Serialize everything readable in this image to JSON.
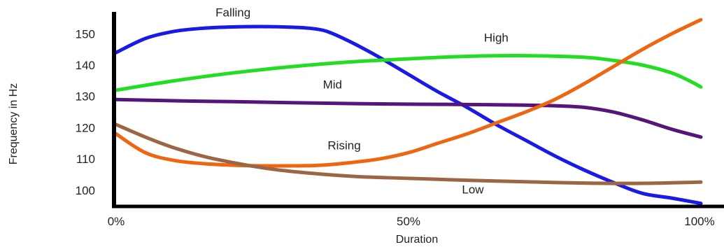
{
  "chart_data": {
    "type": "line",
    "xlabel": "Duration",
    "ylabel": "Frequency in Hz",
    "xlim": [
      0,
      100
    ],
    "ylim": [
      95.5,
      157
    ],
    "x_ticks": [
      {
        "value": 0,
        "label": "0%"
      },
      {
        "value": 50,
        "label": "50%"
      },
      {
        "value": 100,
        "label": "100%"
      }
    ],
    "y_ticks": [
      100,
      110,
      120,
      130,
      140,
      150
    ],
    "grid": false,
    "legend": "none",
    "series": [
      {
        "name": "Falling",
        "color": "#1a1ae6",
        "label_at": [
          20,
          155.5
        ],
        "points": [
          [
            0,
            144
          ],
          [
            5,
            148.5
          ],
          [
            10,
            150.8
          ],
          [
            15,
            151.8
          ],
          [
            20,
            152.2
          ],
          [
            25,
            152.3
          ],
          [
            30,
            152.1
          ],
          [
            33,
            151.8
          ],
          [
            36,
            150.8
          ],
          [
            40,
            147.5
          ],
          [
            45,
            142.5
          ],
          [
            50,
            137
          ],
          [
            55,
            131.5
          ],
          [
            60,
            126.5
          ],
          [
            65,
            121
          ],
          [
            70,
            116
          ],
          [
            75,
            111
          ],
          [
            80,
            106.5
          ],
          [
            85,
            102.5
          ],
          [
            90,
            99
          ],
          [
            95,
            97.5
          ],
          [
            100,
            95.8
          ]
        ]
      },
      {
        "name": "High",
        "color": "#22dd22",
        "label_at": [
          65,
          147.5
        ],
        "points": [
          [
            0,
            132
          ],
          [
            10,
            135
          ],
          [
            20,
            137.5
          ],
          [
            30,
            139.5
          ],
          [
            40,
            141
          ],
          [
            50,
            142
          ],
          [
            60,
            142.8
          ],
          [
            70,
            143
          ],
          [
            80,
            142.5
          ],
          [
            85,
            141.5
          ],
          [
            90,
            140
          ],
          [
            95,
            137.5
          ],
          [
            98,
            135
          ],
          [
            100,
            133
          ]
        ]
      },
      {
        "name": "Mid",
        "color": "#55157a",
        "label_at": [
          37,
          132.5
        ],
        "points": [
          [
            0,
            129
          ],
          [
            10,
            128.6
          ],
          [
            20,
            128.3
          ],
          [
            30,
            128
          ],
          [
            40,
            127.7
          ],
          [
            50,
            127.5
          ],
          [
            60,
            127.4
          ],
          [
            70,
            127.2
          ],
          [
            75,
            127
          ],
          [
            80,
            126.5
          ],
          [
            85,
            125
          ],
          [
            90,
            122.5
          ],
          [
            95,
            119.5
          ],
          [
            100,
            117
          ]
        ]
      },
      {
        "name": "Rising",
        "color": "#ee6611",
        "label_at": [
          39,
          113
        ],
        "points": [
          [
            0,
            118
          ],
          [
            5,
            112
          ],
          [
            10,
            109.5
          ],
          [
            15,
            108.5
          ],
          [
            20,
            108
          ],
          [
            25,
            107.8
          ],
          [
            30,
            107.8
          ],
          [
            35,
            108
          ],
          [
            40,
            108.8
          ],
          [
            45,
            110
          ],
          [
            50,
            112
          ],
          [
            55,
            115
          ],
          [
            60,
            118
          ],
          [
            65,
            121.5
          ],
          [
            70,
            125
          ],
          [
            75,
            129
          ],
          [
            80,
            134
          ],
          [
            85,
            139.5
          ],
          [
            90,
            145
          ],
          [
            95,
            150
          ],
          [
            100,
            154.5
          ]
        ]
      },
      {
        "name": "Low",
        "color": "#9b6644",
        "label_at": [
          61,
          99
        ],
        "points": [
          [
            0,
            121
          ],
          [
            5,
            117
          ],
          [
            10,
            113.5
          ],
          [
            15,
            110.8
          ],
          [
            20,
            108.8
          ],
          [
            25,
            107.2
          ],
          [
            30,
            106
          ],
          [
            40,
            104.5
          ],
          [
            50,
            103.8
          ],
          [
            60,
            103.2
          ],
          [
            70,
            102.7
          ],
          [
            80,
            102.3
          ],
          [
            90,
            102.2
          ],
          [
            100,
            102.6
          ]
        ]
      }
    ]
  }
}
